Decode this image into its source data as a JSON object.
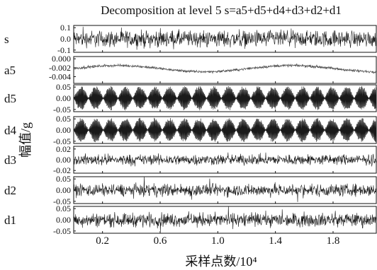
{
  "chart_data": {
    "type": "line",
    "title": "Decomposition at level 5 s=a5+d5+d4+d3+d2+d1",
    "ylabel": "幅值/g",
    "xlabel": "采样点数/10⁴",
    "xlim": [
      0,
      2.1
    ],
    "x_ticks": [
      "0.2",
      "0.6",
      "1.0",
      "1.4",
      "1.8"
    ],
    "x_tick_values": [
      0.2,
      0.6,
      1.0,
      1.4,
      1.8
    ],
    "series": [
      {
        "name": "s",
        "ylim": [
          -0.12,
          0.12
        ],
        "ticks": [
          "0.1",
          "0.0",
          "-0.1"
        ],
        "tick_values": [
          0.1,
          0.0,
          -0.1
        ],
        "kind": "noise",
        "amp": 0.11,
        "dense": true
      },
      {
        "name": "a5",
        "ylim": [
          -0.0055,
          0.0005
        ],
        "ticks": [
          "0.000",
          "-0.002",
          "-0.004"
        ],
        "tick_values": [
          0.0,
          -0.002,
          -0.004
        ],
        "kind": "trend",
        "base": -0.0022,
        "amp": 0.0007
      },
      {
        "name": "d5",
        "ylim": [
          -0.06,
          0.06
        ],
        "ticks": [
          "0.05",
          "0.00",
          "-0.05"
        ],
        "tick_values": [
          0.05,
          0.0,
          -0.05
        ],
        "kind": "beat",
        "amp": 0.055,
        "beats": 20.5
      },
      {
        "name": "d4",
        "ylim": [
          -0.06,
          0.06
        ],
        "ticks": [
          "0.05",
          "0.00",
          "-0.05"
        ],
        "tick_values": [
          0.05,
          0.0,
          -0.05
        ],
        "kind": "beat",
        "amp": 0.055,
        "beats": 20.5
      },
      {
        "name": "d3",
        "ylim": [
          -0.025,
          0.025
        ],
        "ticks": [
          "0.02",
          "0.00",
          "-0.02"
        ],
        "tick_values": [
          0.02,
          0.0,
          -0.02
        ],
        "kind": "noise",
        "amp": 0.016,
        "dense": false
      },
      {
        "name": "d2",
        "ylim": [
          -0.06,
          0.06
        ],
        "ticks": [
          "0.05",
          "0.00",
          "-0.05"
        ],
        "tick_values": [
          0.05,
          0.0,
          -0.05
        ],
        "kind": "noise",
        "amp": 0.045,
        "dense": false
      },
      {
        "name": "d1",
        "ylim": [
          -0.06,
          0.06
        ],
        "ticks": [
          "0.05",
          "0.00",
          "-0.05"
        ],
        "tick_values": [
          0.05,
          0.0,
          -0.05
        ],
        "kind": "noise",
        "amp": 0.05,
        "dense": false
      }
    ]
  }
}
